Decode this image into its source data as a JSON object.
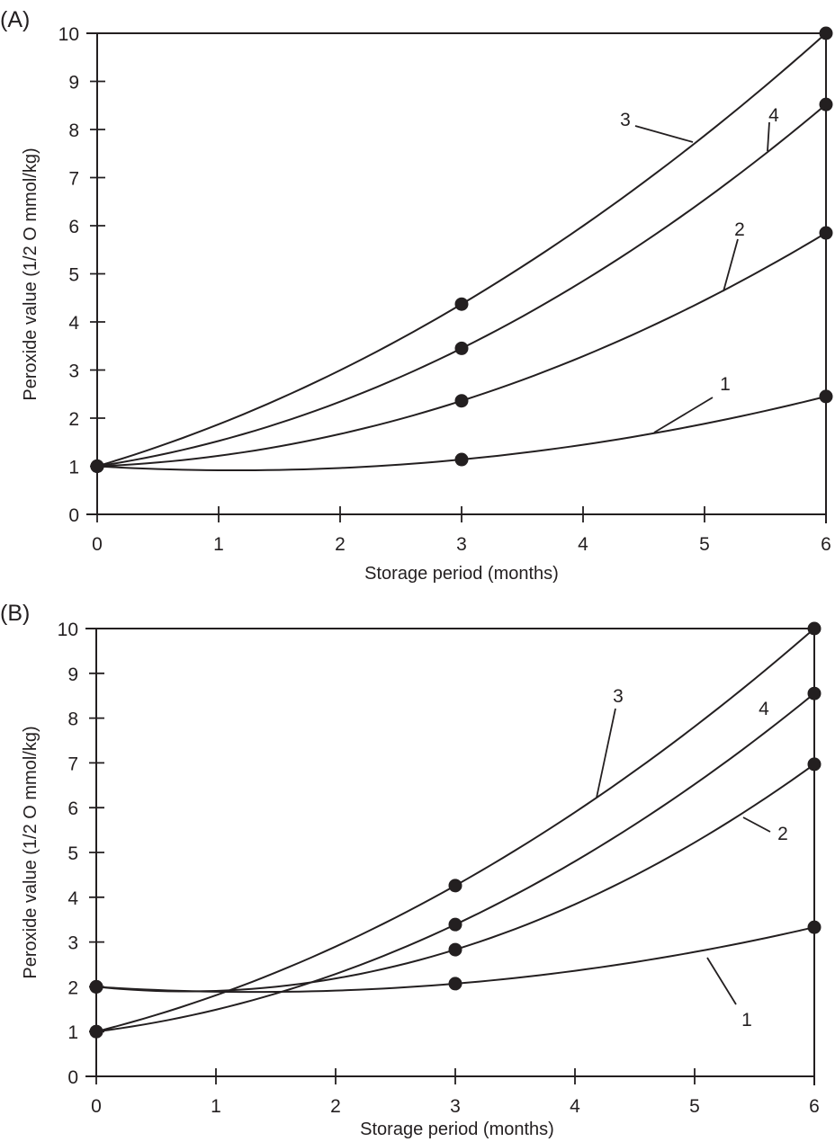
{
  "chart_data": [
    {
      "panel": "(A)",
      "type": "line",
      "title": "",
      "xlabel": "Storage period (months)",
      "ylabel": "Peroxide value (1/2 O mmol/kg)",
      "xlim": [
        0,
        6
      ],
      "ylim": [
        0,
        10
      ],
      "xticks": [
        "0",
        "1",
        "2",
        "3",
        "4",
        "5",
        "6"
      ],
      "yticks": [
        "0",
        "1",
        "2",
        "3",
        "4",
        "5",
        "6",
        "7",
        "8",
        "9",
        "10"
      ],
      "grid": false,
      "x": [
        0,
        3,
        6
      ],
      "series": [
        {
          "name": "1",
          "values": [
            1.0,
            1.14,
            2.45
          ]
        },
        {
          "name": "2",
          "values": [
            1.0,
            2.36,
            5.85
          ]
        },
        {
          "name": "3",
          "values": [
            1.0,
            4.37,
            10.0
          ]
        },
        {
          "name": "4",
          "values": [
            1.0,
            3.45,
            8.52
          ]
        }
      ]
    },
    {
      "panel": "(B)",
      "type": "line",
      "title": "",
      "xlabel": "Storage period (months)",
      "ylabel": "Peroxide value (1/2 O mmol/kg)",
      "xlim": [
        0,
        6
      ],
      "ylim": [
        0,
        10
      ],
      "xticks": [
        "0",
        "1",
        "2",
        "3",
        "4",
        "5",
        "6"
      ],
      "yticks": [
        "0",
        "1",
        "2",
        "3",
        "4",
        "5",
        "6",
        "7",
        "8",
        "9",
        "10"
      ],
      "grid": false,
      "x": [
        0,
        3,
        6
      ],
      "series": [
        {
          "name": "1",
          "values": [
            2.0,
            2.07,
            3.33
          ]
        },
        {
          "name": "2",
          "values": [
            2.0,
            2.83,
            6.97
          ]
        },
        {
          "name": "3",
          "values": [
            1.0,
            4.26,
            10.0
          ]
        },
        {
          "name": "4",
          "values": [
            1.0,
            3.39,
            8.55
          ]
        }
      ]
    }
  ]
}
